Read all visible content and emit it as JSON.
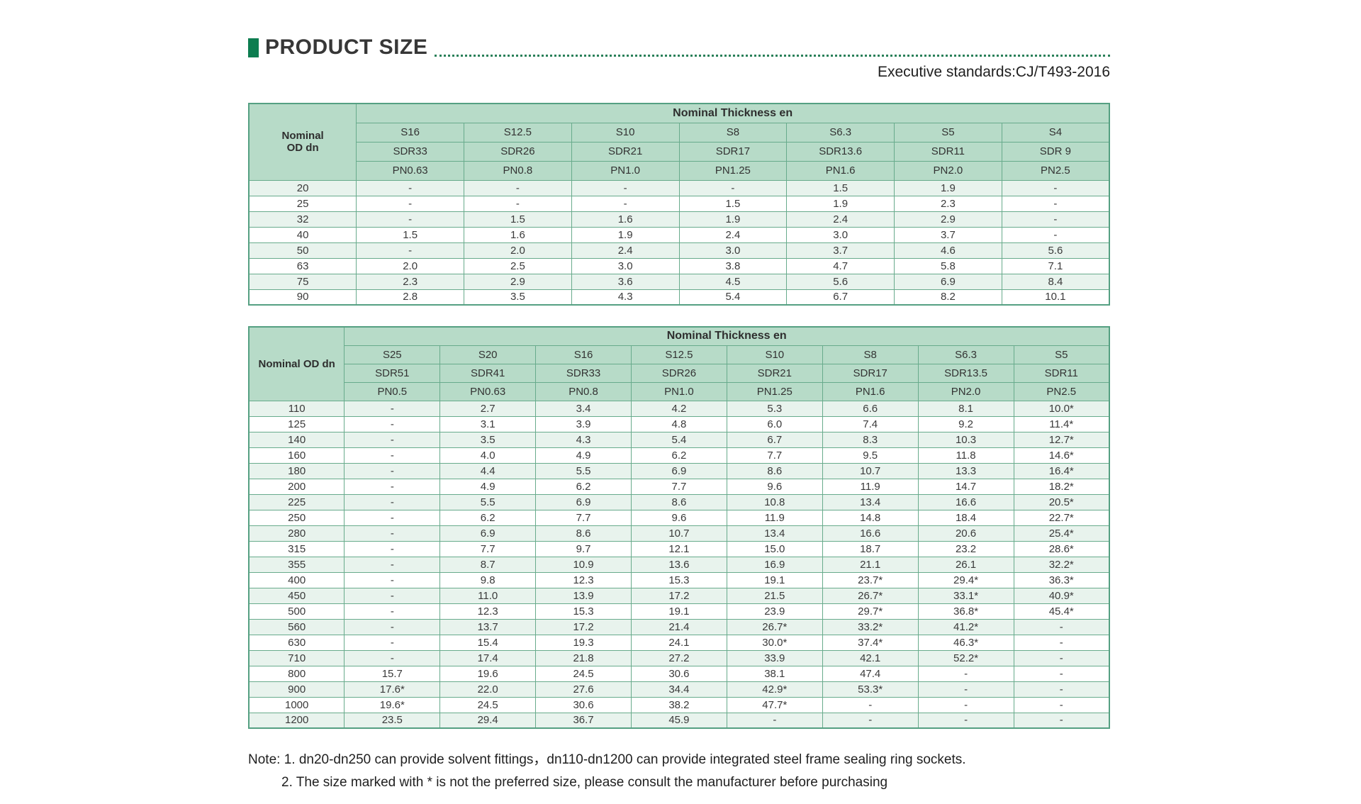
{
  "page": {
    "title": "PRODUCT SIZE",
    "standard": "Executive standards:CJ/T493-2016",
    "notes": [
      "Note: 1. dn20-dn250 can provide solvent fittings，dn110-dn1200 can provide integrated steel frame sealing ring sockets.",
      "2. The size marked with * is not the preferred size, please consult the manufacturer before purchasing"
    ]
  },
  "colors": {
    "accent_green": "#0d7d50",
    "header_bg": "#b7dbc8",
    "stripe_bg": "#e8f3ed",
    "border_green": "#68ab8c"
  },
  "tables": [
    {
      "corner_lines": [
        "Nominal",
        "OD dn"
      ],
      "group_header": "Nominal Thickness en",
      "s_row": [
        "S16",
        "S12.5",
        "S10",
        "S8",
        "S6.3",
        "S5",
        "S4"
      ],
      "sdr_row": [
        "SDR33",
        "SDR26",
        "SDR21",
        "SDR17",
        "SDR13.6",
        "SDR11",
        "SDR 9"
      ],
      "pn_row": [
        "PN0.63",
        "PN0.8",
        "PN1.0",
        "PN1.25",
        "PN1.6",
        "PN2.0",
        "PN2.5"
      ],
      "rows": [
        {
          "od": "20",
          "values": [
            "-",
            "-",
            "-",
            "-",
            "1.5",
            "1.9",
            "-"
          ]
        },
        {
          "od": "25",
          "values": [
            "-",
            "-",
            "-",
            "1.5",
            "1.9",
            "2.3",
            "-"
          ]
        },
        {
          "od": "32",
          "values": [
            "-",
            "1.5",
            "1.6",
            "1.9",
            "2.4",
            "2.9",
            "-"
          ]
        },
        {
          "od": "40",
          "values": [
            "1.5",
            "1.6",
            "1.9",
            "2.4",
            "3.0",
            "3.7",
            "-"
          ]
        },
        {
          "od": "50",
          "values": [
            "-",
            "2.0",
            "2.4",
            "3.0",
            "3.7",
            "4.6",
            "5.6"
          ]
        },
        {
          "od": "63",
          "values": [
            "2.0",
            "2.5",
            "3.0",
            "3.8",
            "4.7",
            "5.8",
            "7.1"
          ]
        },
        {
          "od": "75",
          "values": [
            "2.3",
            "2.9",
            "3.6",
            "4.5",
            "5.6",
            "6.9",
            "8.4"
          ]
        },
        {
          "od": "90",
          "values": [
            "2.8",
            "3.5",
            "4.3",
            "5.4",
            "6.7",
            "8.2",
            "10.1"
          ]
        }
      ]
    },
    {
      "corner_lines": [
        "Nominal OD dn"
      ],
      "group_header": "Nominal Thickness en",
      "s_row": [
        "S25",
        "S20",
        "S16",
        "S12.5",
        "S10",
        "S8",
        "S6.3",
        "S5"
      ],
      "sdr_row": [
        "SDR51",
        "SDR41",
        "SDR33",
        "SDR26",
        "SDR21",
        "SDR17",
        "SDR13.5",
        "SDR11"
      ],
      "pn_row": [
        "PN0.5",
        "PN0.63",
        "PN0.8",
        "PN1.0",
        "PN1.25",
        "PN1.6",
        "PN2.0",
        "PN2.5"
      ],
      "rows": [
        {
          "od": "110",
          "values": [
            "-",
            "2.7",
            "3.4",
            "4.2",
            "5.3",
            "6.6",
            "8.1",
            "10.0*"
          ]
        },
        {
          "od": "125",
          "values": [
            "-",
            "3.1",
            "3.9",
            "4.8",
            "6.0",
            "7.4",
            "9.2",
            "11.4*"
          ]
        },
        {
          "od": "140",
          "values": [
            "-",
            "3.5",
            "4.3",
            "5.4",
            "6.7",
            "8.3",
            "10.3",
            "12.7*"
          ]
        },
        {
          "od": "160",
          "values": [
            "-",
            "4.0",
            "4.9",
            "6.2",
            "7.7",
            "9.5",
            "11.8",
            "14.6*"
          ]
        },
        {
          "od": "180",
          "values": [
            "-",
            "4.4",
            "5.5",
            "6.9",
            "8.6",
            "10.7",
            "13.3",
            "16.4*"
          ]
        },
        {
          "od": "200",
          "values": [
            "-",
            "4.9",
            "6.2",
            "7.7",
            "9.6",
            "11.9",
            "14.7",
            "18.2*"
          ]
        },
        {
          "od": "225",
          "values": [
            "-",
            "5.5",
            "6.9",
            "8.6",
            "10.8",
            "13.4",
            "16.6",
            "20.5*"
          ]
        },
        {
          "od": "250",
          "values": [
            "-",
            "6.2",
            "7.7",
            "9.6",
            "11.9",
            "14.8",
            "18.4",
            "22.7*"
          ]
        },
        {
          "od": "280",
          "values": [
            "-",
            "6.9",
            "8.6",
            "10.7",
            "13.4",
            "16.6",
            "20.6",
            "25.4*"
          ]
        },
        {
          "od": "315",
          "values": [
            "-",
            "7.7",
            "9.7",
            "12.1",
            "15.0",
            "18.7",
            "23.2",
            "28.6*"
          ]
        },
        {
          "od": "355",
          "values": [
            "-",
            "8.7",
            "10.9",
            "13.6",
            "16.9",
            "21.1",
            "26.1",
            "32.2*"
          ]
        },
        {
          "od": "400",
          "values": [
            "-",
            "9.8",
            "12.3",
            "15.3",
            "19.1",
            "23.7*",
            "29.4*",
            "36.3*"
          ]
        },
        {
          "od": "450",
          "values": [
            "-",
            "11.0",
            "13.9",
            "17.2",
            "21.5",
            "26.7*",
            "33.1*",
            "40.9*"
          ]
        },
        {
          "od": "500",
          "values": [
            "-",
            "12.3",
            "15.3",
            "19.1",
            "23.9",
            "29.7*",
            "36.8*",
            "45.4*"
          ]
        },
        {
          "od": "560",
          "values": [
            "-",
            "13.7",
            "17.2",
            "21.4",
            "26.7*",
            "33.2*",
            "41.2*",
            "-"
          ]
        },
        {
          "od": "630",
          "values": [
            "-",
            "15.4",
            "19.3",
            "24.1",
            "30.0*",
            "37.4*",
            "46.3*",
            "-"
          ]
        },
        {
          "od": "710",
          "values": [
            "-",
            "17.4",
            "21.8",
            "27.2",
            "33.9",
            "42.1",
            "52.2*",
            "-"
          ]
        },
        {
          "od": "800",
          "values": [
            "15.7",
            "19.6",
            "24.5",
            "30.6",
            "38.1",
            "47.4",
            "-",
            "-"
          ]
        },
        {
          "od": "900",
          "values": [
            "17.6*",
            "22.0",
            "27.6",
            "34.4",
            "42.9*",
            "53.3*",
            "-",
            "-"
          ]
        },
        {
          "od": "1000",
          "values": [
            "19.6*",
            "24.5",
            "30.6",
            "38.2",
            "47.7*",
            "-",
            "-",
            "-"
          ]
        },
        {
          "od": "1200",
          "values": [
            "23.5",
            "29.4",
            "36.7",
            "45.9",
            "-",
            "-",
            "-",
            "-"
          ]
        }
      ]
    }
  ]
}
